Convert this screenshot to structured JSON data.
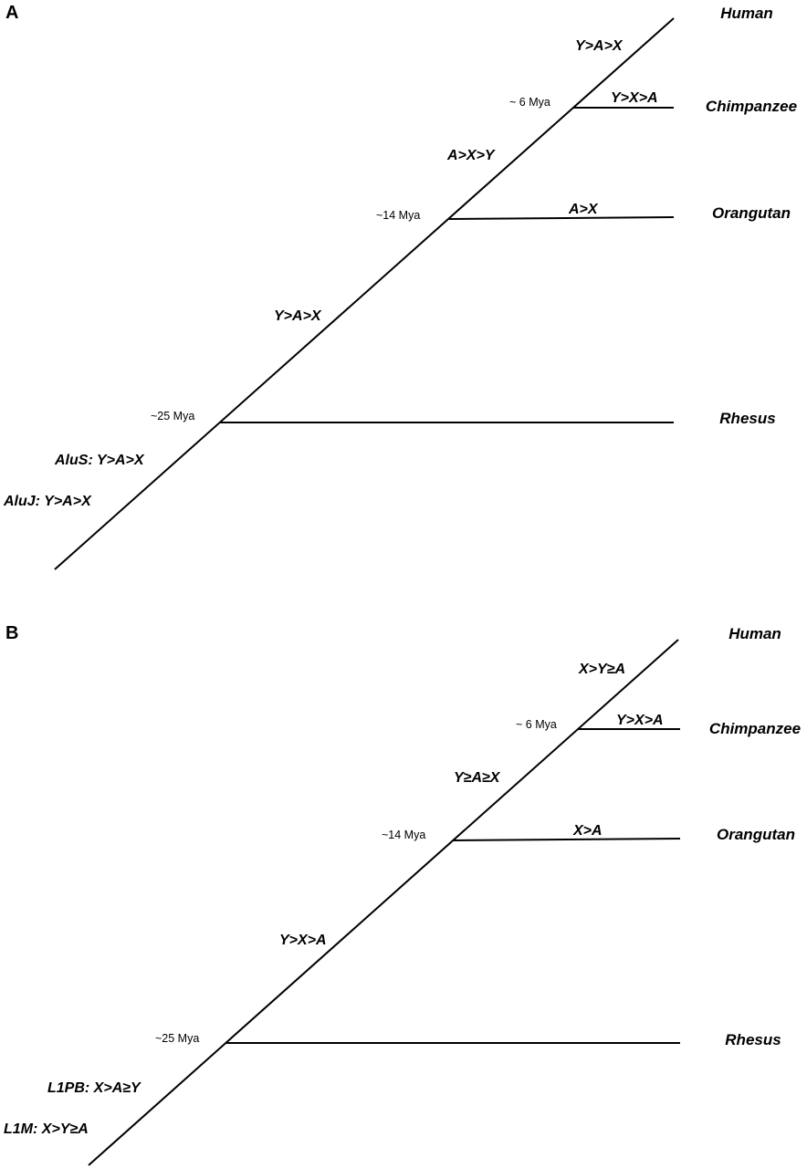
{
  "panel_a": {
    "label": "A",
    "species": {
      "human": "Human",
      "chimpanzee": "Chimpanzee",
      "orangutan": "Orangutan",
      "rhesus": "Rhesus"
    },
    "times": {
      "chimp_split": "~ 6 Mya",
      "orang_split": "~14 Mya",
      "rhesus_split": "~25 Mya"
    },
    "orders": {
      "human_branch": "Y>A>X",
      "chimp_branch": "Y>X>A",
      "hc_ancestor": "A>X>Y",
      "orang_branch": "A>X",
      "hco_ancestor": "Y>A>X",
      "family_1": "AluS: Y>A>X",
      "family_2": "AluJ: Y>A>X"
    }
  },
  "panel_b": {
    "label": "B",
    "species": {
      "human": "Human",
      "chimpanzee": "Chimpanzee",
      "orangutan": "Orangutan",
      "rhesus": "Rhesus"
    },
    "times": {
      "chimp_split": "~ 6 Mya",
      "orang_split": "~14 Mya",
      "rhesus_split": "~25 Mya"
    },
    "orders": {
      "human_branch": "X>Y≥A",
      "chimp_branch": "Y>X>A",
      "hc_ancestor": "Y≥A≥X",
      "orang_branch": "X>A",
      "hco_ancestor": "Y>X>A",
      "family_1": "L1PB: X>A≥Y",
      "family_2": "L1M: X>Y≥A"
    }
  }
}
